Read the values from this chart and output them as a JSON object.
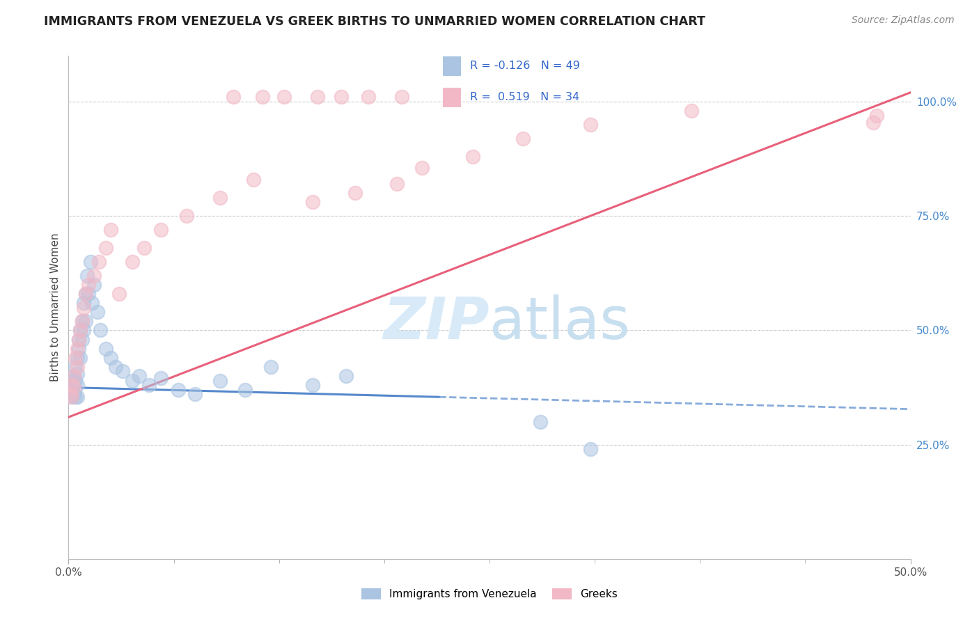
{
  "title": "IMMIGRANTS FROM VENEZUELA VS GREEK BIRTHS TO UNMARRIED WOMEN CORRELATION CHART",
  "source": "Source: ZipAtlas.com",
  "ylabel": "Births to Unmarried Women",
  "ylabel_right_ticks": [
    "25.0%",
    "50.0%",
    "75.0%",
    "100.0%"
  ],
  "ylabel_right_values": [
    0.25,
    0.5,
    0.75,
    1.0
  ],
  "x_min": 0.0,
  "x_max": 0.5,
  "y_min": 0.0,
  "y_max": 1.1,
  "blue_color": "#aac4e2",
  "pink_color": "#f2b8c6",
  "blue_line_color": "#5588cc",
  "pink_line_color": "#e8607a",
  "watermark_color": "#d8eaf8",
  "blue_R": -0.126,
  "blue_N": 49,
  "pink_R": 0.519,
  "pink_N": 34,
  "blue_line_solid_end": 0.22,
  "blue_intercept": 0.375,
  "blue_slope": -0.095,
  "pink_intercept": 0.31,
  "pink_slope": 1.42,
  "blue_x": [
    0.001,
    0.001,
    0.002,
    0.002,
    0.002,
    0.003,
    0.003,
    0.003,
    0.004,
    0.004,
    0.004,
    0.005,
    0.005,
    0.005,
    0.005,
    0.006,
    0.006,
    0.007,
    0.007,
    0.008,
    0.008,
    0.009,
    0.009,
    0.01,
    0.01,
    0.011,
    0.012,
    0.013,
    0.014,
    0.015,
    0.017,
    0.019,
    0.022,
    0.025,
    0.028,
    0.032,
    0.038,
    0.042,
    0.048,
    0.055,
    0.065,
    0.075,
    0.09,
    0.105,
    0.12,
    0.145,
    0.165,
    0.28,
    0.31
  ],
  "blue_y": [
    0.375,
    0.36,
    0.39,
    0.355,
    0.37,
    0.4,
    0.38,
    0.36,
    0.42,
    0.39,
    0.355,
    0.44,
    0.405,
    0.38,
    0.355,
    0.48,
    0.46,
    0.5,
    0.44,
    0.52,
    0.48,
    0.56,
    0.5,
    0.58,
    0.52,
    0.62,
    0.58,
    0.65,
    0.56,
    0.6,
    0.54,
    0.5,
    0.46,
    0.44,
    0.42,
    0.41,
    0.39,
    0.4,
    0.38,
    0.395,
    0.37,
    0.36,
    0.39,
    0.37,
    0.42,
    0.38,
    0.4,
    0.3,
    0.24
  ],
  "pink_x": [
    0.001,
    0.002,
    0.002,
    0.003,
    0.003,
    0.004,
    0.005,
    0.005,
    0.006,
    0.007,
    0.008,
    0.009,
    0.01,
    0.012,
    0.015,
    0.018,
    0.022,
    0.025,
    0.03,
    0.038,
    0.045,
    0.055,
    0.07,
    0.09,
    0.11,
    0.145,
    0.17,
    0.195,
    0.21,
    0.24,
    0.27,
    0.31,
    0.37,
    0.48
  ],
  "pink_y": [
    0.36,
    0.38,
    0.355,
    0.4,
    0.375,
    0.44,
    0.46,
    0.42,
    0.48,
    0.5,
    0.52,
    0.55,
    0.58,
    0.6,
    0.62,
    0.65,
    0.68,
    0.72,
    0.58,
    0.65,
    0.68,
    0.72,
    0.75,
    0.79,
    0.83,
    0.78,
    0.8,
    0.82,
    0.855,
    0.88,
    0.92,
    0.95,
    0.98,
    0.97
  ],
  "top_pink_x": [
    0.098,
    0.115,
    0.128,
    0.148,
    0.162,
    0.178,
    0.198
  ],
  "top_pink_y": [
    1.01,
    1.01,
    1.01,
    1.01,
    1.01,
    1.01,
    1.01
  ],
  "far_right_pink_x": [
    0.478
  ],
  "far_right_pink_y": [
    0.955
  ]
}
